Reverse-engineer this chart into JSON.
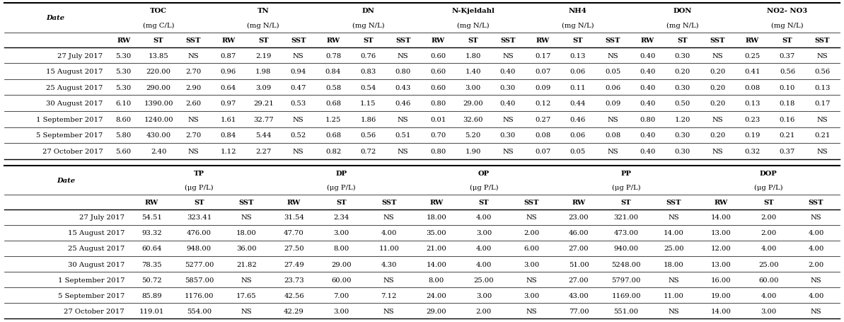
{
  "table1_data": [
    [
      "27 July 2017",
      "5.30",
      "13.85",
      "NS",
      "0.87",
      "2.19",
      "NS",
      "0.78",
      "0.76",
      "NS",
      "0.60",
      "1.80",
      "NS",
      "0.17",
      "0.13",
      "NS",
      "0.40",
      "0.30",
      "NS",
      "0.25",
      "0.37",
      "NS"
    ],
    [
      "15 August 2017",
      "5.30",
      "220.00",
      "2.70",
      "0.96",
      "1.98",
      "0.94",
      "0.84",
      "0.83",
      "0.80",
      "0.60",
      "1.40",
      "0.40",
      "0.07",
      "0.06",
      "0.05",
      "0.40",
      "0.20",
      "0.20",
      "0.41",
      "0.56",
      "0.56"
    ],
    [
      "25 August 2017",
      "5.30",
      "290.00",
      "2.90",
      "0.64",
      "3.09",
      "0.47",
      "0.58",
      "0.54",
      "0.43",
      "0.60",
      "3.00",
      "0.30",
      "0.09",
      "0.11",
      "0.06",
      "0.40",
      "0.30",
      "0.20",
      "0.08",
      "0.10",
      "0.13"
    ],
    [
      "30 August 2017",
      "6.10",
      "1390.00",
      "2.60",
      "0.97",
      "29.21",
      "0.53",
      "0.68",
      "1.15",
      "0.46",
      "0.80",
      "29.00",
      "0.40",
      "0.12",
      "0.44",
      "0.09",
      "0.40",
      "0.50",
      "0.20",
      "0.13",
      "0.18",
      "0.17"
    ],
    [
      "1 September 2017",
      "8.60",
      "1240.00",
      "NS",
      "1.61",
      "32.77",
      "NS",
      "1.25",
      "1.86",
      "NS",
      "0.01",
      "32.60",
      "NS",
      "0.27",
      "0.46",
      "NS",
      "0.80",
      "1.20",
      "NS",
      "0.23",
      "0.16",
      "NS"
    ],
    [
      "5 September 2017",
      "5.80",
      "430.00",
      "2.70",
      "0.84",
      "5.44",
      "0.52",
      "0.68",
      "0.56",
      "0.51",
      "0.70",
      "5.20",
      "0.30",
      "0.08",
      "0.06",
      "0.08",
      "0.40",
      "0.30",
      "0.20",
      "0.19",
      "0.21",
      "0.21"
    ],
    [
      "27 October 2017",
      "5.60",
      "2.40",
      "NS",
      "1.12",
      "2.27",
      "NS",
      "0.82",
      "0.72",
      "NS",
      "0.80",
      "1.90",
      "NS",
      "0.07",
      "0.05",
      "NS",
      "0.40",
      "0.30",
      "NS",
      "0.32",
      "0.37",
      "NS"
    ]
  ],
  "table2_data": [
    [
      "27 July 2017",
      "54.51",
      "323.41",
      "NS",
      "31.54",
      "2.34",
      "NS",
      "18.00",
      "4.00",
      "NS",
      "23.00",
      "321.00",
      "NS",
      "14.00",
      "2.00",
      "NS"
    ],
    [
      "15 August 2017",
      "93.32",
      "476.00",
      "18.00",
      "47.70",
      "3.00",
      "4.00",
      "35.00",
      "3.00",
      "2.00",
      "46.00",
      "473.00",
      "14.00",
      "13.00",
      "2.00",
      "4.00"
    ],
    [
      "25 August 2017",
      "60.64",
      "948.00",
      "36.00",
      "27.50",
      "8.00",
      "11.00",
      "21.00",
      "4.00",
      "6.00",
      "27.00",
      "940.00",
      "25.00",
      "12.00",
      "4.00",
      "4.00"
    ],
    [
      "30 August 2017",
      "78.35",
      "5277.00",
      "21.82",
      "27.49",
      "29.00",
      "4.30",
      "14.00",
      "4.00",
      "3.00",
      "51.00",
      "5248.00",
      "18.00",
      "13.00",
      "25.00",
      "2.00"
    ],
    [
      "1 September 2017",
      "50.72",
      "5857.00",
      "NS",
      "23.73",
      "60.00",
      "NS",
      "8.00",
      "25.00",
      "NS",
      "27.00",
      "5797.00",
      "NS",
      "16.00",
      "60.00",
      "NS"
    ],
    [
      "5 September 2017",
      "85.89",
      "1176.00",
      "17.65",
      "42.56",
      "7.00",
      "7.12",
      "24.00",
      "3.00",
      "3.00",
      "43.00",
      "1169.00",
      "11.00",
      "19.00",
      "4.00",
      "4.00"
    ],
    [
      "27 October 2017",
      "119.01",
      "554.00",
      "NS",
      "42.29",
      "3.00",
      "NS",
      "29.00",
      "2.00",
      "NS",
      "77.00",
      "551.00",
      "NS",
      "14.00",
      "3.00",
      "NS"
    ]
  ],
  "t1_groups": [
    {
      "label": "TOC",
      "unit": "(mg C/L)",
      "cols": 3
    },
    {
      "label": "TN",
      "unit": "(mg N/L)",
      "cols": 3
    },
    {
      "label": "DN",
      "unit": "(mg N/L)",
      "cols": 3
    },
    {
      "label": "N-Kjeldahl",
      "unit": "(mg N/L)",
      "cols": 3
    },
    {
      "label": "NH4",
      "unit": "(mg N/L)",
      "cols": 3
    },
    {
      "label": "DON",
      "unit": "(mg N/L)",
      "cols": 3
    },
    {
      "label": "NO2- NO3",
      "unit": "(mg N/L)",
      "cols": 3
    }
  ],
  "t2_groups": [
    {
      "label": "TP",
      "unit": "(μg P/L)",
      "cols": 3
    },
    {
      "label": "DP",
      "unit": "(μg P/L)",
      "cols": 3
    },
    {
      "label": "OP",
      "unit": "(μg P/L)",
      "cols": 3
    },
    {
      "label": "PP",
      "unit": "(μg P/L)",
      "cols": 3
    },
    {
      "label": "DOP",
      "unit": "(μg P/L)",
      "cols": 3
    }
  ],
  "figsize": [
    11.93,
    4.56
  ],
  "dpi": 100
}
